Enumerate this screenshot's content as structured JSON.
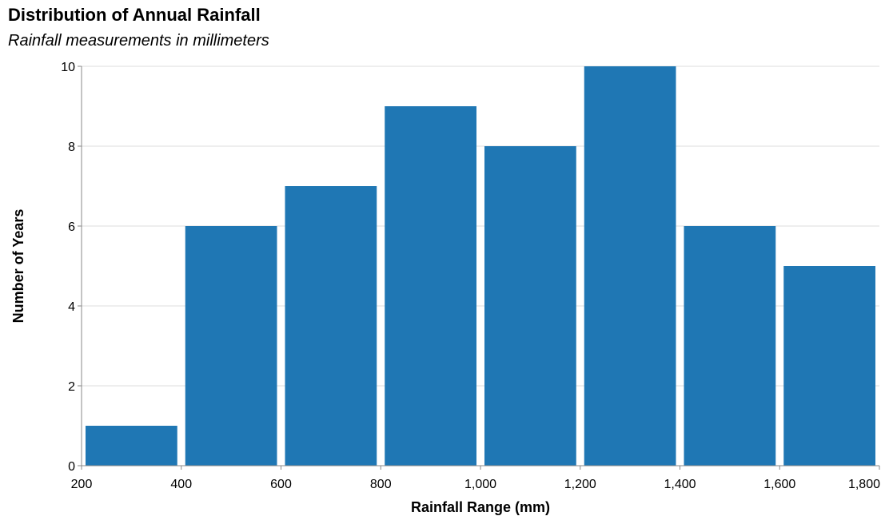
{
  "chart_data": {
    "type": "bar",
    "title": "Distribution of Annual Rainfall",
    "subtitle": "Rainfall measurements in millimeters",
    "xlabel": "Rainfall Range (mm)",
    "ylabel": "Number of Years",
    "bins": [
      {
        "start": 200,
        "end": 400,
        "value": 1
      },
      {
        "start": 400,
        "end": 600,
        "value": 6
      },
      {
        "start": 600,
        "end": 800,
        "value": 7
      },
      {
        "start": 800,
        "end": 1000,
        "value": 9
      },
      {
        "start": 1000,
        "end": 1200,
        "value": 8
      },
      {
        "start": 1200,
        "end": 1400,
        "value": 10
      },
      {
        "start": 1400,
        "end": 1600,
        "value": 6
      },
      {
        "start": 1600,
        "end": 1800,
        "value": 5
      }
    ],
    "xlim": [
      200,
      1800
    ],
    "ylim": [
      0,
      10
    ],
    "xticks": [
      200,
      400,
      600,
      800,
      1000,
      1200,
      1400,
      1600,
      1800
    ],
    "xtick_labels": [
      "200",
      "400",
      "600",
      "800",
      "1,000",
      "1,200",
      "1,400",
      "1,600",
      "1,800"
    ],
    "yticks": [
      0,
      2,
      4,
      6,
      8,
      10
    ],
    "ytick_labels": [
      "0",
      "2",
      "4",
      "6",
      "8",
      "10"
    ],
    "grid": true,
    "bar_color": "#1f77b4"
  }
}
